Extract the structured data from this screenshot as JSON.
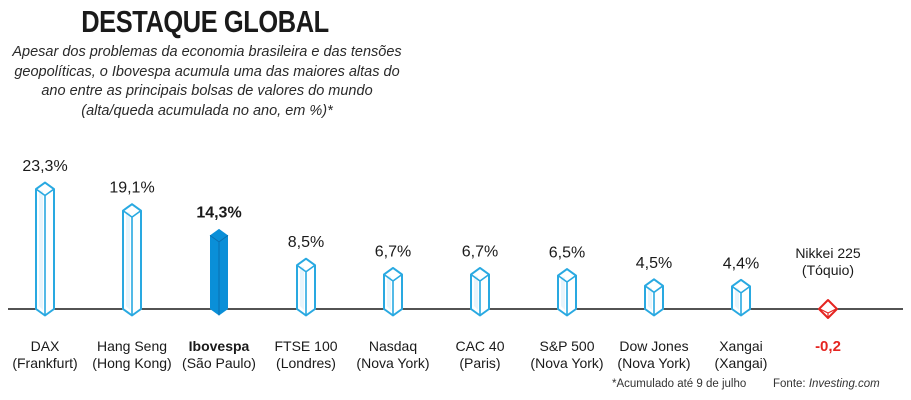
{
  "header": {
    "title": "DESTAQUE GLOBAL",
    "subtitle_lines": [
      "Apesar dos problemas da economia brasileira e das tensões",
      "geopolíticas, o Ibovespa acumula uma das maiores altas do",
      "ano entre as principais bolsas de valores do mundo",
      "(alta/queda acumulada no ano, em %)*"
    ]
  },
  "colors": {
    "outline": "#29a9e1",
    "pale_fill": "#e8f5fc",
    "highlight_fill": "#0a8fd8",
    "negative": "#e52521",
    "baseline": "#1a1a1a"
  },
  "chart_data": {
    "type": "bar",
    "categories": [
      {
        "name": "DAX",
        "place": "(Frankfurt)"
      },
      {
        "name": "Hang Seng",
        "place": "(Hong Kong)"
      },
      {
        "name": "Ibovespa",
        "place": "(São Paulo)"
      },
      {
        "name": "FTSE 100",
        "place": "(Londres)"
      },
      {
        "name": "Nasdaq",
        "place": "(Nova York)"
      },
      {
        "name": "CAC 40",
        "place": "(Paris)"
      },
      {
        "name": "S&P 500",
        "place": "(Nova York)"
      },
      {
        "name": "Dow Jones",
        "place": "(Nova York)"
      },
      {
        "name": "Xangai",
        "place": "(Xangai)"
      },
      {
        "name": "Nikkei 225",
        "place": "(Tóquio)"
      }
    ],
    "values": [
      23.3,
      19.1,
      14.3,
      8.5,
      6.7,
      6.7,
      6.5,
      4.5,
      4.4,
      -0.2
    ],
    "value_labels": [
      "23,3%",
      "19,1%",
      "14,3%",
      "8,5%",
      "6,7%",
      "6,7%",
      "6,5%",
      "4,5%",
      "4,4%",
      "-0,2"
    ],
    "highlight": "Ibovespa",
    "title": "DESTAQUE GLOBAL",
    "xlabel": "",
    "ylabel": "",
    "grid": false,
    "legend": "none"
  },
  "footer": {
    "footnote": "*Acumulado até 9 de julho",
    "source_label": "Fonte: ",
    "source_name": "Investing.com"
  }
}
